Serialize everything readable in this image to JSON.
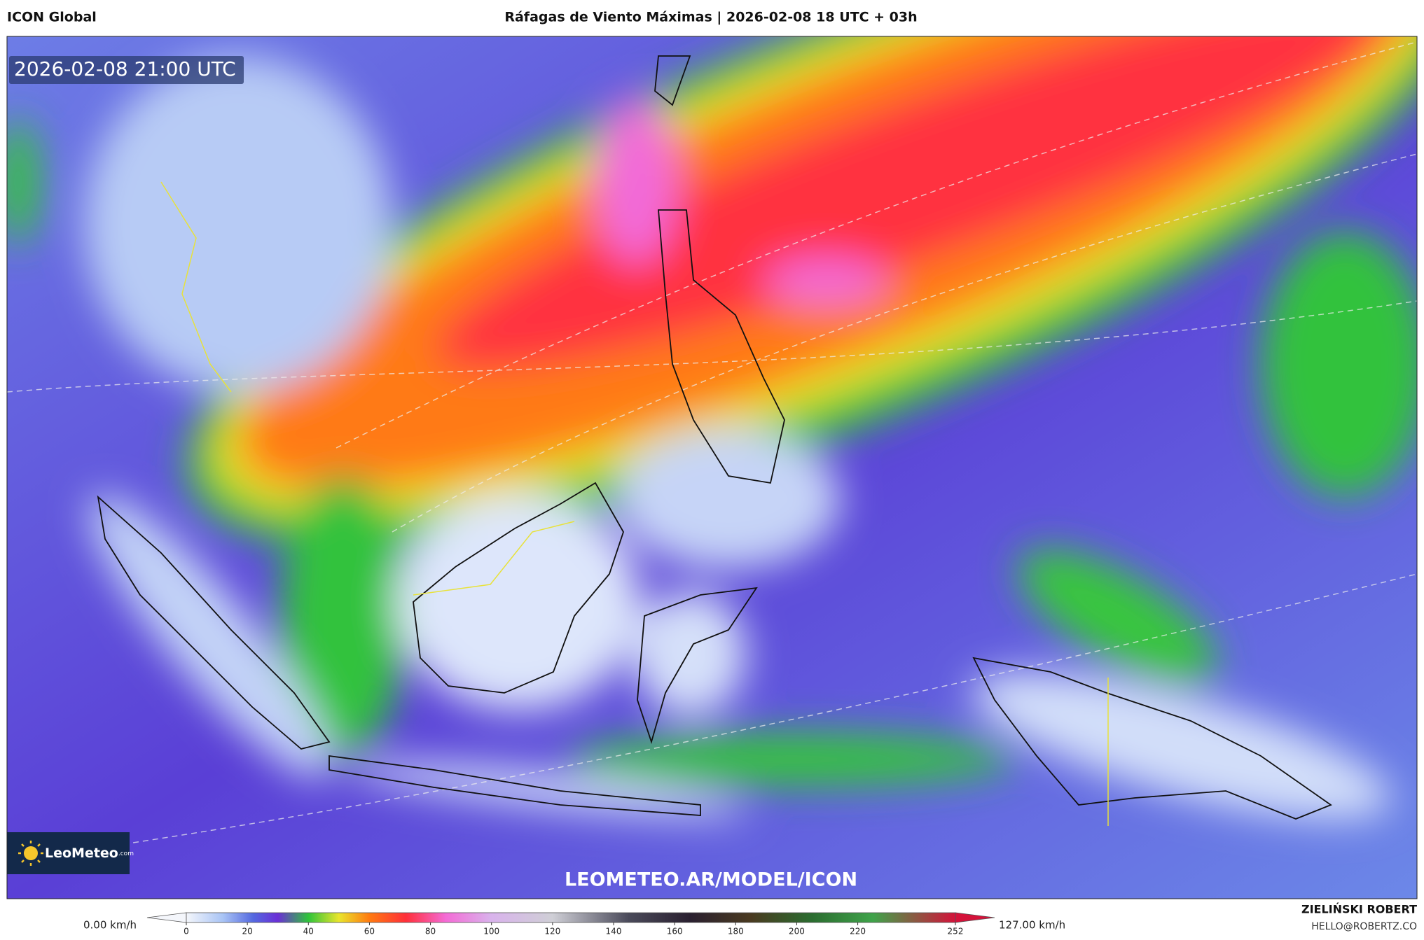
{
  "header": {
    "model": "ICON Global",
    "title": "Ráfagas de Viento Máximas | 2026-02-08 18 UTC + 03h"
  },
  "map": {
    "valid_time": "2026-02-08 21:00 UTC",
    "watermark": "LEOMETEO.AR/MODEL/ICON",
    "logo": "LeoMeteo",
    "logo_suffix": ".com"
  },
  "colorbar": {
    "range": [
      0,
      252
    ],
    "ticks": [
      0,
      20,
      40,
      60,
      80,
      100,
      120,
      140,
      160,
      180,
      200,
      220,
      252
    ],
    "min_label": "0.00 km/h",
    "max_label": "127.00 km/h",
    "stops": [
      {
        "value": 0,
        "color": "#f4f6fb"
      },
      {
        "value": 12,
        "color": "#a9c4f5"
      },
      {
        "value": 22,
        "color": "#5468e0"
      },
      {
        "value": 30,
        "color": "#6a2fd6"
      },
      {
        "value": 40,
        "color": "#2fc43a"
      },
      {
        "value": 50,
        "color": "#e9e52c"
      },
      {
        "value": 60,
        "color": "#ff7a10"
      },
      {
        "value": 72,
        "color": "#ff2f3a"
      },
      {
        "value": 85,
        "color": "#f46bd6"
      },
      {
        "value": 100,
        "color": "#d9b3ec"
      },
      {
        "value": 120,
        "color": "#cfcfd6"
      },
      {
        "value": 145,
        "color": "#4a4a5a"
      },
      {
        "value": 165,
        "color": "#2a2030"
      },
      {
        "value": 185,
        "color": "#4a3a20"
      },
      {
        "value": 205,
        "color": "#2b6d30"
      },
      {
        "value": 225,
        "color": "#3fa34a"
      },
      {
        "value": 252,
        "color": "#d4123a"
      }
    ]
  },
  "footer": {
    "author": "ZIELIŃSKI ROBERT",
    "contact": "HELLO@ROBERTZ.CO"
  }
}
